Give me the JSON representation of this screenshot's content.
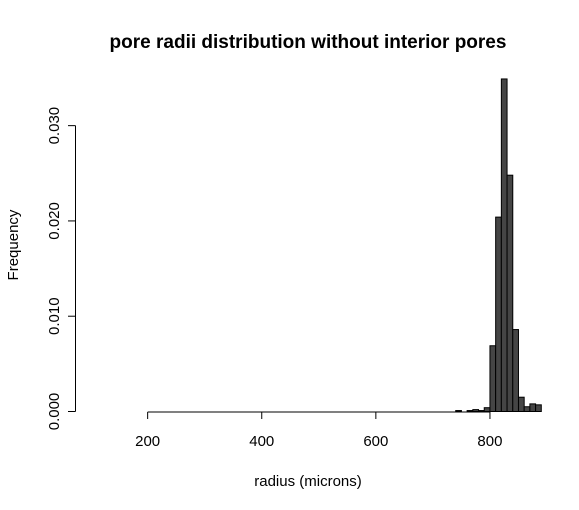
{
  "chart_data": {
    "type": "bar",
    "title": "pore radii distribution without interior pores",
    "xlabel": "radius (microns)",
    "ylabel": "Frequency",
    "xlim": [
      100,
      900
    ],
    "ylim": [
      0,
      0.035
    ],
    "x_ticks": [
      200,
      400,
      600,
      800
    ],
    "x_tick_labels": [
      "200",
      "400",
      "600",
      "800"
    ],
    "y_ticks": [
      0,
      0.01,
      0.02,
      0.03
    ],
    "y_tick_labels": [
      "0.000",
      "0.010",
      "0.020",
      "0.030"
    ],
    "bin_width": 10,
    "bins_start": [
      740,
      750,
      760,
      770,
      780,
      790,
      800,
      810,
      820,
      830,
      840,
      850,
      860,
      870,
      880,
      890
    ],
    "values": [
      0.0001,
      0.0,
      0.0001,
      0.0002,
      0.0001,
      0.0004,
      0.0069,
      0.0204,
      0.0349,
      0.0248,
      0.0086,
      0.0015,
      0.0005,
      0.0008,
      0.0007,
      0.0
    ],
    "bar_color": "#454545",
    "grid": false
  }
}
